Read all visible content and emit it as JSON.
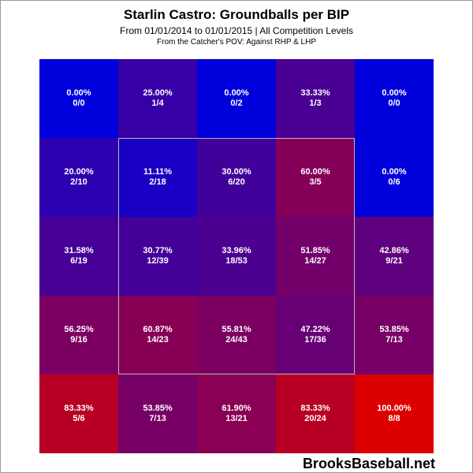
{
  "chart_data": {
    "type": "heatmap",
    "title": "Starlin Castro: Groundballs per BIP",
    "subtitle": "From 01/01/2014 to 01/01/2015 | All Competition Levels",
    "note": "From the Catcher's POV:  Against RHP & LHP",
    "rows": [
      [
        {
          "pct": "0.00%",
          "count": "0/0",
          "value": 0.0
        },
        {
          "pct": "25.00%",
          "count": "1/4",
          "value": 25.0
        },
        {
          "pct": "0.00%",
          "count": "0/2",
          "value": 0.0
        },
        {
          "pct": "33.33%",
          "count": "1/3",
          "value": 33.33
        },
        {
          "pct": "0.00%",
          "count": "0/0",
          "value": 0.0
        }
      ],
      [
        {
          "pct": "20.00%",
          "count": "2/10",
          "value": 20.0
        },
        {
          "pct": "11.11%",
          "count": "2/18",
          "value": 11.11
        },
        {
          "pct": "30.00%",
          "count": "6/20",
          "value": 30.0
        },
        {
          "pct": "60.00%",
          "count": "3/5",
          "value": 60.0
        },
        {
          "pct": "0.00%",
          "count": "0/6",
          "value": 0.0
        }
      ],
      [
        {
          "pct": "31.58%",
          "count": "6/19",
          "value": 31.58
        },
        {
          "pct": "30.77%",
          "count": "12/39",
          "value": 30.77
        },
        {
          "pct": "33.96%",
          "count": "18/53",
          "value": 33.96
        },
        {
          "pct": "51.85%",
          "count": "14/27",
          "value": 51.85
        },
        {
          "pct": "42.86%",
          "count": "9/21",
          "value": 42.86
        }
      ],
      [
        {
          "pct": "56.25%",
          "count": "9/16",
          "value": 56.25
        },
        {
          "pct": "60.87%",
          "count": "14/23",
          "value": 60.87
        },
        {
          "pct": "55.81%",
          "count": "24/43",
          "value": 55.81
        },
        {
          "pct": "47.22%",
          "count": "17/36",
          "value": 47.22
        },
        {
          "pct": "53.85%",
          "count": "7/13",
          "value": 53.85
        }
      ],
      [
        {
          "pct": "83.33%",
          "count": "5/6",
          "value": 83.33
        },
        {
          "pct": "53.85%",
          "count": "7/13",
          "value": 53.85
        },
        {
          "pct": "61.90%",
          "count": "13/21",
          "value": 61.9
        },
        {
          "pct": "83.33%",
          "count": "20/24",
          "value": 83.33
        },
        {
          "pct": "100.00%",
          "count": "8/8",
          "value": 100.0
        }
      ]
    ],
    "color_scale": {
      "low": "#0000dd",
      "high": "#dd0000"
    },
    "strike_zone": "inner 3x3 cells"
  },
  "watermark": "BrooksBaseball.net"
}
